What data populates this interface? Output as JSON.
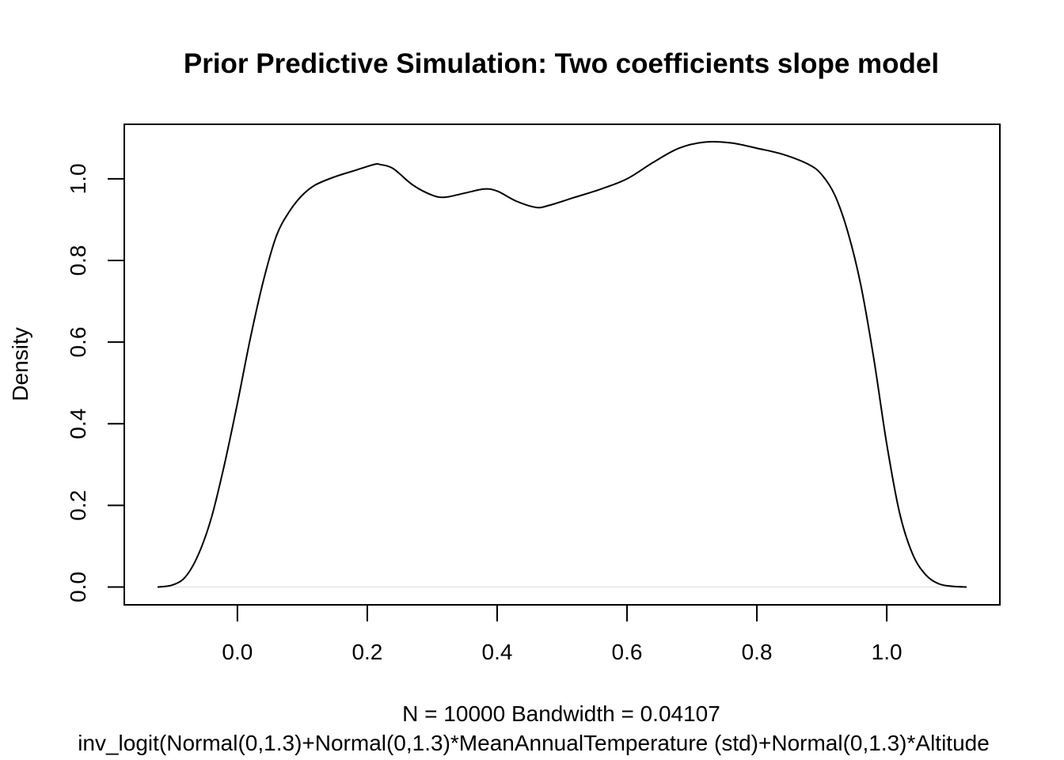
{
  "chart_data": {
    "type": "line",
    "title": "Prior Predictive Simulation: Two coefficients slope model",
    "xlabel_line1": "N = 10000   Bandwidth = 0.04107",
    "xlabel_line2": "inv_logit(Normal(0,1.3)+Normal(0,1.3)*MeanAnnualTemperature (std)+Normal(0,1.3)*Altitude",
    "ylabel": "Density",
    "xlim": [
      -0.1742,
      1.1742
    ],
    "ylim": [
      -0.0436,
      1.1336
    ],
    "x_ticks": [
      0.0,
      0.2,
      0.4,
      0.6,
      0.8,
      1.0
    ],
    "x_tick_labels": [
      "0.0",
      "0.2",
      "0.4",
      "0.6",
      "0.8",
      "1.0"
    ],
    "y_ticks": [
      0.0,
      0.2,
      0.4,
      0.6,
      0.8,
      1.0
    ],
    "y_tick_labels": [
      "0.0",
      "0.2",
      "0.4",
      "0.6",
      "0.8",
      "1.0"
    ],
    "grid": false,
    "zero_baseline": true,
    "series": [
      {
        "x": [
          -0.123,
          -0.1,
          -0.08,
          -0.06,
          -0.04,
          -0.02,
          0.0,
          0.02,
          0.04,
          0.06,
          0.08,
          0.1,
          0.12,
          0.15,
          0.18,
          0.21,
          0.22,
          0.24,
          0.27,
          0.3,
          0.32,
          0.35,
          0.38,
          0.4,
          0.43,
          0.46,
          0.48,
          0.52,
          0.56,
          0.6,
          0.64,
          0.68,
          0.72,
          0.76,
          0.8,
          0.84,
          0.88,
          0.9,
          0.92,
          0.94,
          0.96,
          0.98,
          1.0,
          1.02,
          1.04,
          1.06,
          1.08,
          1.1,
          1.123
        ],
        "y": [
          0.0,
          0.005,
          0.025,
          0.08,
          0.17,
          0.3,
          0.45,
          0.61,
          0.75,
          0.86,
          0.92,
          0.96,
          0.985,
          1.005,
          1.02,
          1.035,
          1.035,
          1.025,
          0.985,
          0.96,
          0.955,
          0.965,
          0.975,
          0.97,
          0.945,
          0.93,
          0.935,
          0.955,
          0.975,
          1.0,
          1.04,
          1.075,
          1.09,
          1.088,
          1.075,
          1.06,
          1.035,
          1.01,
          0.96,
          0.87,
          0.74,
          0.56,
          0.35,
          0.18,
          0.08,
          0.03,
          0.008,
          0.002,
          0.0
        ]
      }
    ]
  }
}
